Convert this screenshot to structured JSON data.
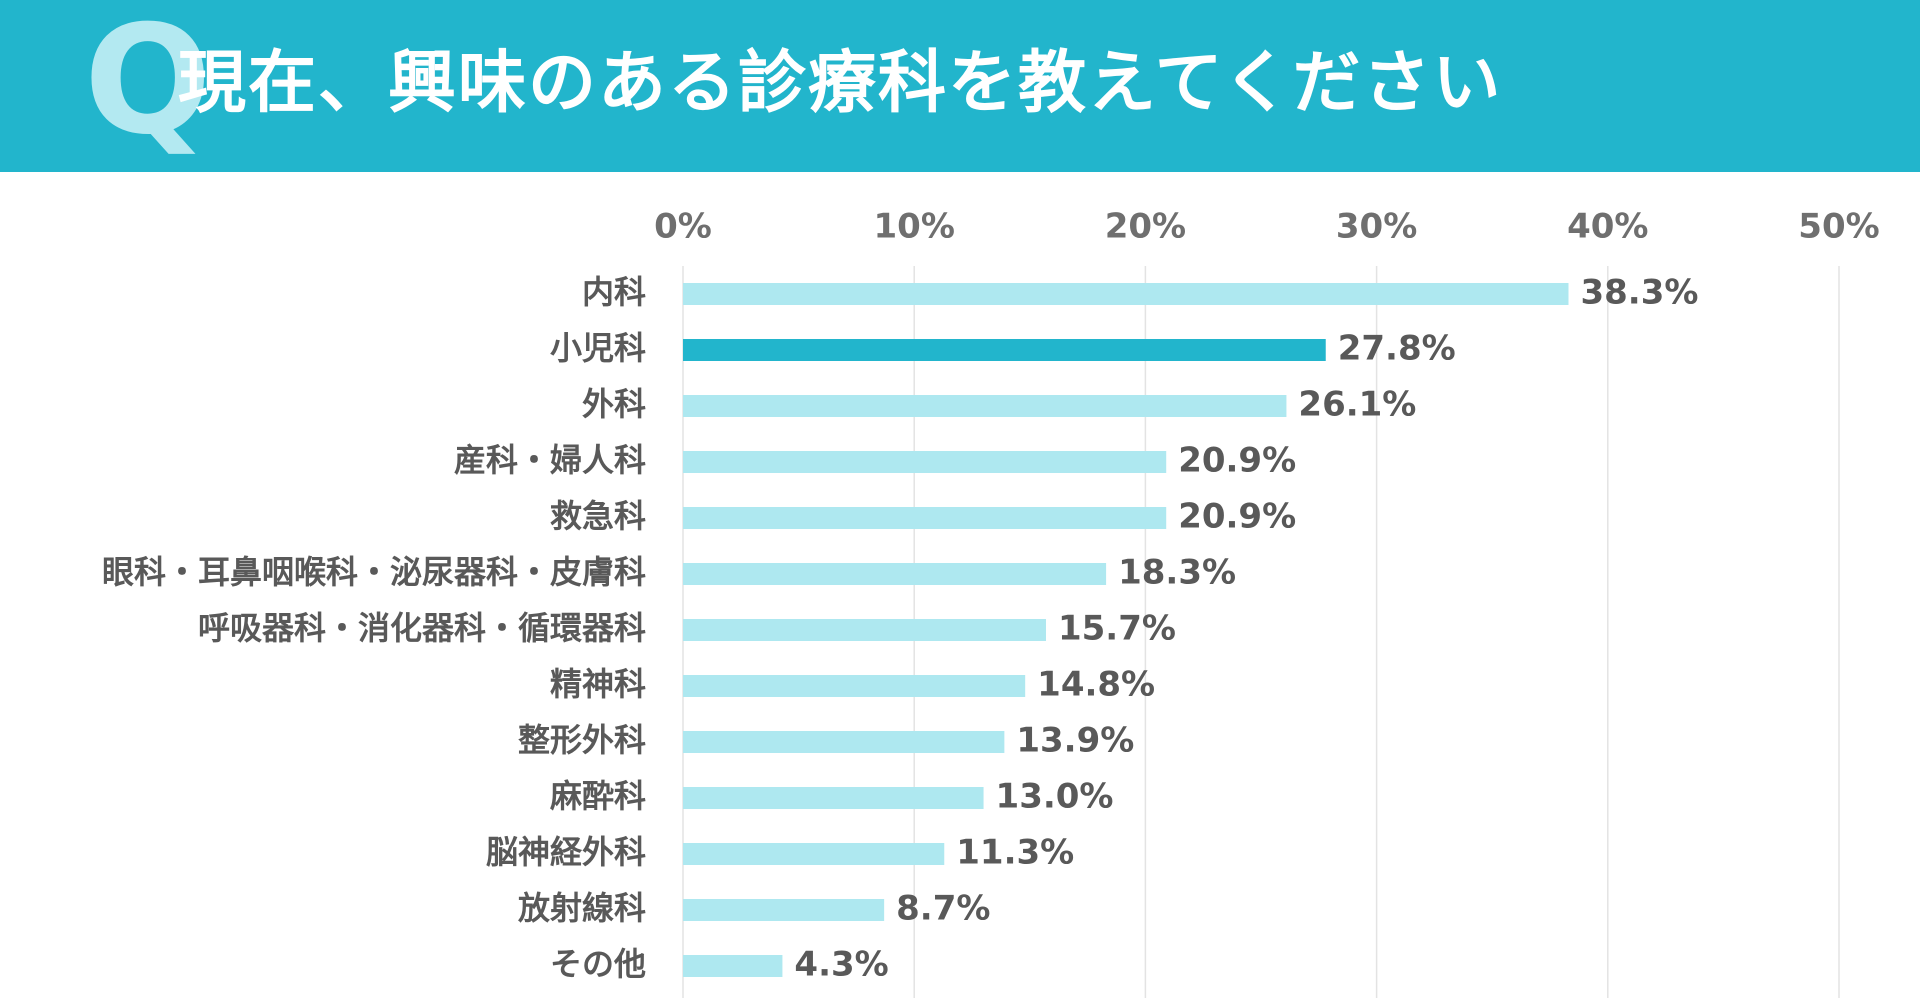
{
  "header": {
    "q_mark": "Q",
    "title": "現在、興味のある診療科を教えてください"
  },
  "colors": {
    "header_bg": "#22b5cc",
    "q_mark": "#b3e9f1",
    "bar": "#aee8f0",
    "bar_highlight": "#22b5cc",
    "grid": "#e3e3e3"
  },
  "chart_data": {
    "type": "bar",
    "orientation": "horizontal",
    "title": "現在、興味のある診療科を教えてください",
    "xlabel": "",
    "ylabel": "",
    "xlim": [
      0,
      50
    ],
    "x_ticks": [
      0,
      10,
      20,
      30,
      40,
      50
    ],
    "x_tick_labels": [
      "0%",
      "10%",
      "20%",
      "30%",
      "40%",
      "50%"
    ],
    "grid": true,
    "highlight_category": "小児科",
    "categories": [
      "内科",
      "小児科",
      "外科",
      "産科・婦人科",
      "救急科",
      "眼科・耳鼻咽喉科・泌尿器科・皮膚科",
      "呼吸器科・消化器科・循環器科",
      "精神科",
      "整形外科",
      "麻酔科",
      "脳神経外科",
      "放射線科",
      "その他"
    ],
    "values": [
      38.3,
      27.8,
      26.1,
      20.9,
      20.9,
      18.3,
      15.7,
      14.8,
      13.9,
      13.0,
      11.3,
      8.7,
      4.3
    ],
    "value_labels": [
      "38.3%",
      "27.8%",
      "26.1%",
      "20.9%",
      "20.9%",
      "18.3%",
      "15.7%",
      "14.8%",
      "13.9%",
      "13.0%",
      "11.3%",
      "8.7%",
      "4.3%"
    ]
  }
}
